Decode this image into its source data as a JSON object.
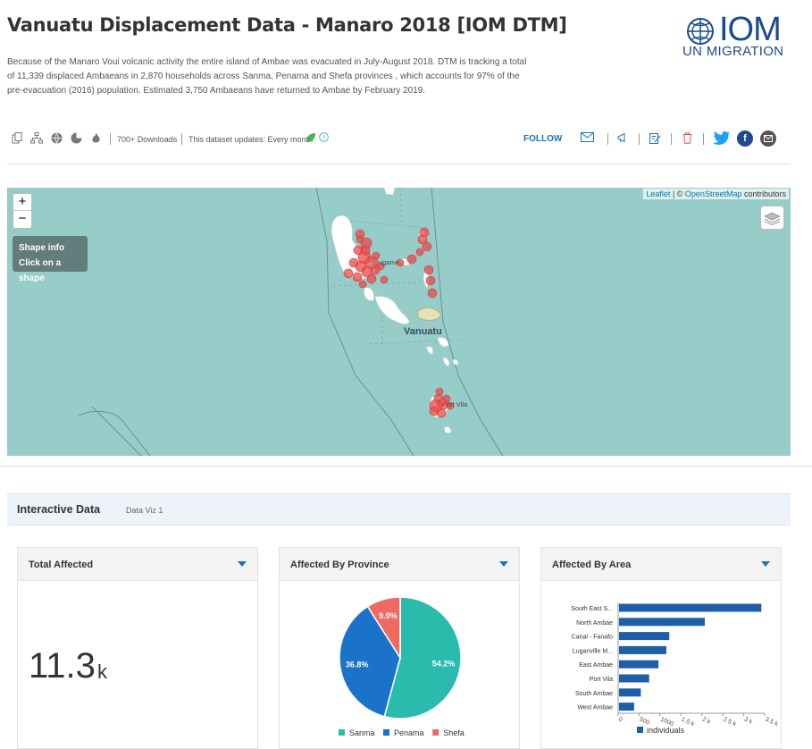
{
  "header": {
    "title": "Vanuatu Displacement Data - Manaro 2018 [IOM DTM]",
    "description": "Because of the Manaro Voui volcanic activity the entire island of Ambae was evacuated in July-August 2018. DTM is tracking a total of 11,339 displaced Ambaeans in 2,870 households across Sanma, Penama and Shefa provinces , which accounts for 97% of the pre-evacuation (2016) population. Estimated 3,750 Ambaeans have returned to Ambae by February 2019."
  },
  "logo": {
    "name": "IOM",
    "subtitle": "UN MIGRATION",
    "color": "#1a4b8c"
  },
  "toolbar": {
    "icons": [
      "copy-icon",
      "network-icon",
      "globe-icon",
      "pie-icon",
      "flame-icon"
    ],
    "downloads": "700+ Downloads",
    "updates": "This dataset updates: Every month",
    "follow": "FOLLOW",
    "action_icons": [
      "mail-icon",
      "megaphone-icon",
      "edit-icon",
      "trash-icon"
    ],
    "social_icons": [
      "twitter-icon",
      "facebook-icon",
      "email-icon"
    ]
  },
  "map": {
    "zoom_in": "+",
    "zoom_out": "−",
    "shape_info_title": "Shape info",
    "shape_info_hint": "Click on a shape",
    "attribution_leaflet": "Leaflet",
    "attribution_sep": " | © ",
    "attribution_osm": "OpenStreetMap",
    "attribution_rest": " contributors",
    "label_country": "Vanuatu",
    "label_city1": "Port Vila",
    "label_city2": "uganvi",
    "water_color": "#96cdc9",
    "marker_color": "#e84a4a"
  },
  "interactive": {
    "title": "Interactive Data",
    "tab": "Data Viz 1"
  },
  "cards": {
    "total": {
      "title": "Total Affected",
      "value": "11.3",
      "unit": "k"
    },
    "province": {
      "title": "Affected By Province"
    },
    "area": {
      "title": "Affected By Area"
    }
  },
  "chart_data": [
    {
      "type": "pie",
      "title": "Affected By Province",
      "categories": [
        "Sanma",
        "Penama",
        "Shefa"
      ],
      "values": [
        54.2,
        36.8,
        9.0
      ],
      "labels": [
        "54.2%",
        "36.8%",
        "9.0%"
      ],
      "colors": [
        "#2bbbad",
        "#1a73c8",
        "#ef6b62"
      ],
      "legend": "bottom"
    },
    {
      "type": "bar",
      "orientation": "horizontal",
      "title": "Affected By Area",
      "categories": [
        "South East S...",
        "North Ambae",
        "Canal - Fanafo",
        "Luganville M...",
        "East Ambae",
        "Port Vila",
        "South Ambae",
        "West Ambae"
      ],
      "series": [
        {
          "name": "individuals",
          "values": [
            3400,
            2050,
            1200,
            1130,
            940,
            720,
            520,
            360
          ]
        }
      ],
      "xticks": [
        "0",
        "500",
        "1000",
        "1.5 k",
        "2 k",
        "2.5 k",
        "3 k",
        "3.5 k"
      ],
      "xlim": [
        0,
        3500
      ],
      "color": "#1f5fa8",
      "legend": "bottom"
    }
  ]
}
